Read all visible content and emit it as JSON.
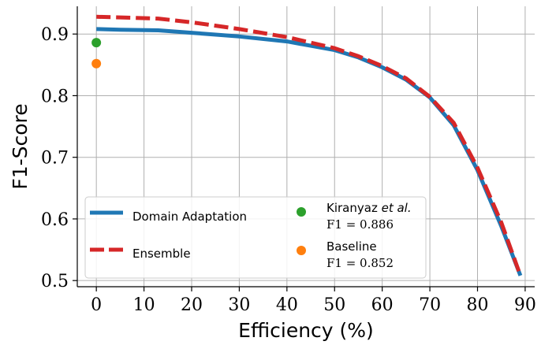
{
  "chart_data": {
    "type": "line",
    "title": "",
    "xlabel": "Efficiency (%)",
    "ylabel": "F1-Score",
    "xlim": [
      -4,
      92
    ],
    "ylim": [
      0.49,
      0.945
    ],
    "xticks": [
      0,
      10,
      20,
      30,
      40,
      50,
      60,
      70,
      80,
      90
    ],
    "xtick_labels": [
      "0",
      "10",
      "20",
      "30",
      "40",
      "50",
      "60",
      "70",
      "80",
      "90"
    ],
    "yticks": [
      0.5,
      0.6,
      0.7,
      0.8,
      0.9
    ],
    "ytick_labels": [
      "0.5",
      "0.6",
      "0.7",
      "0.8",
      "0.9"
    ],
    "grid": true,
    "legend_placement": "lower-left",
    "series": [
      {
        "name": "Domain Adaptation",
        "style": "solid",
        "color": "#1f77b4",
        "x": [
          0,
          5,
          13,
          20,
          30,
          40,
          50,
          55,
          60,
          65,
          70,
          75,
          80,
          85,
          89
        ],
        "y": [
          0.908,
          0.907,
          0.906,
          0.902,
          0.896,
          0.888,
          0.874,
          0.862,
          0.846,
          0.826,
          0.797,
          0.752,
          0.679,
          0.588,
          0.508
        ]
      },
      {
        "name": "Ensemble",
        "style": "dashed",
        "color": "#d62728",
        "x": [
          0,
          5,
          13,
          20,
          30,
          40,
          50,
          55,
          60,
          65,
          70,
          75,
          80,
          85,
          89
        ],
        "y": [
          0.928,
          0.927,
          0.925,
          0.919,
          0.908,
          0.895,
          0.877,
          0.864,
          0.848,
          0.828,
          0.798,
          0.756,
          0.683,
          0.594,
          0.508
        ]
      }
    ],
    "points": [
      {
        "name": "Kiranyaz et al.",
        "name_plain": "Kiranyaz ",
        "name_italic": "et al.",
        "sublabel": "F1 = 0.886",
        "color": "#2ca02c",
        "x": 0,
        "y": 0.886
      },
      {
        "name": "Baseline",
        "sublabel": "F1 = 0.852",
        "color": "#ff7f0e",
        "x": 0,
        "y": 0.852
      }
    ]
  }
}
